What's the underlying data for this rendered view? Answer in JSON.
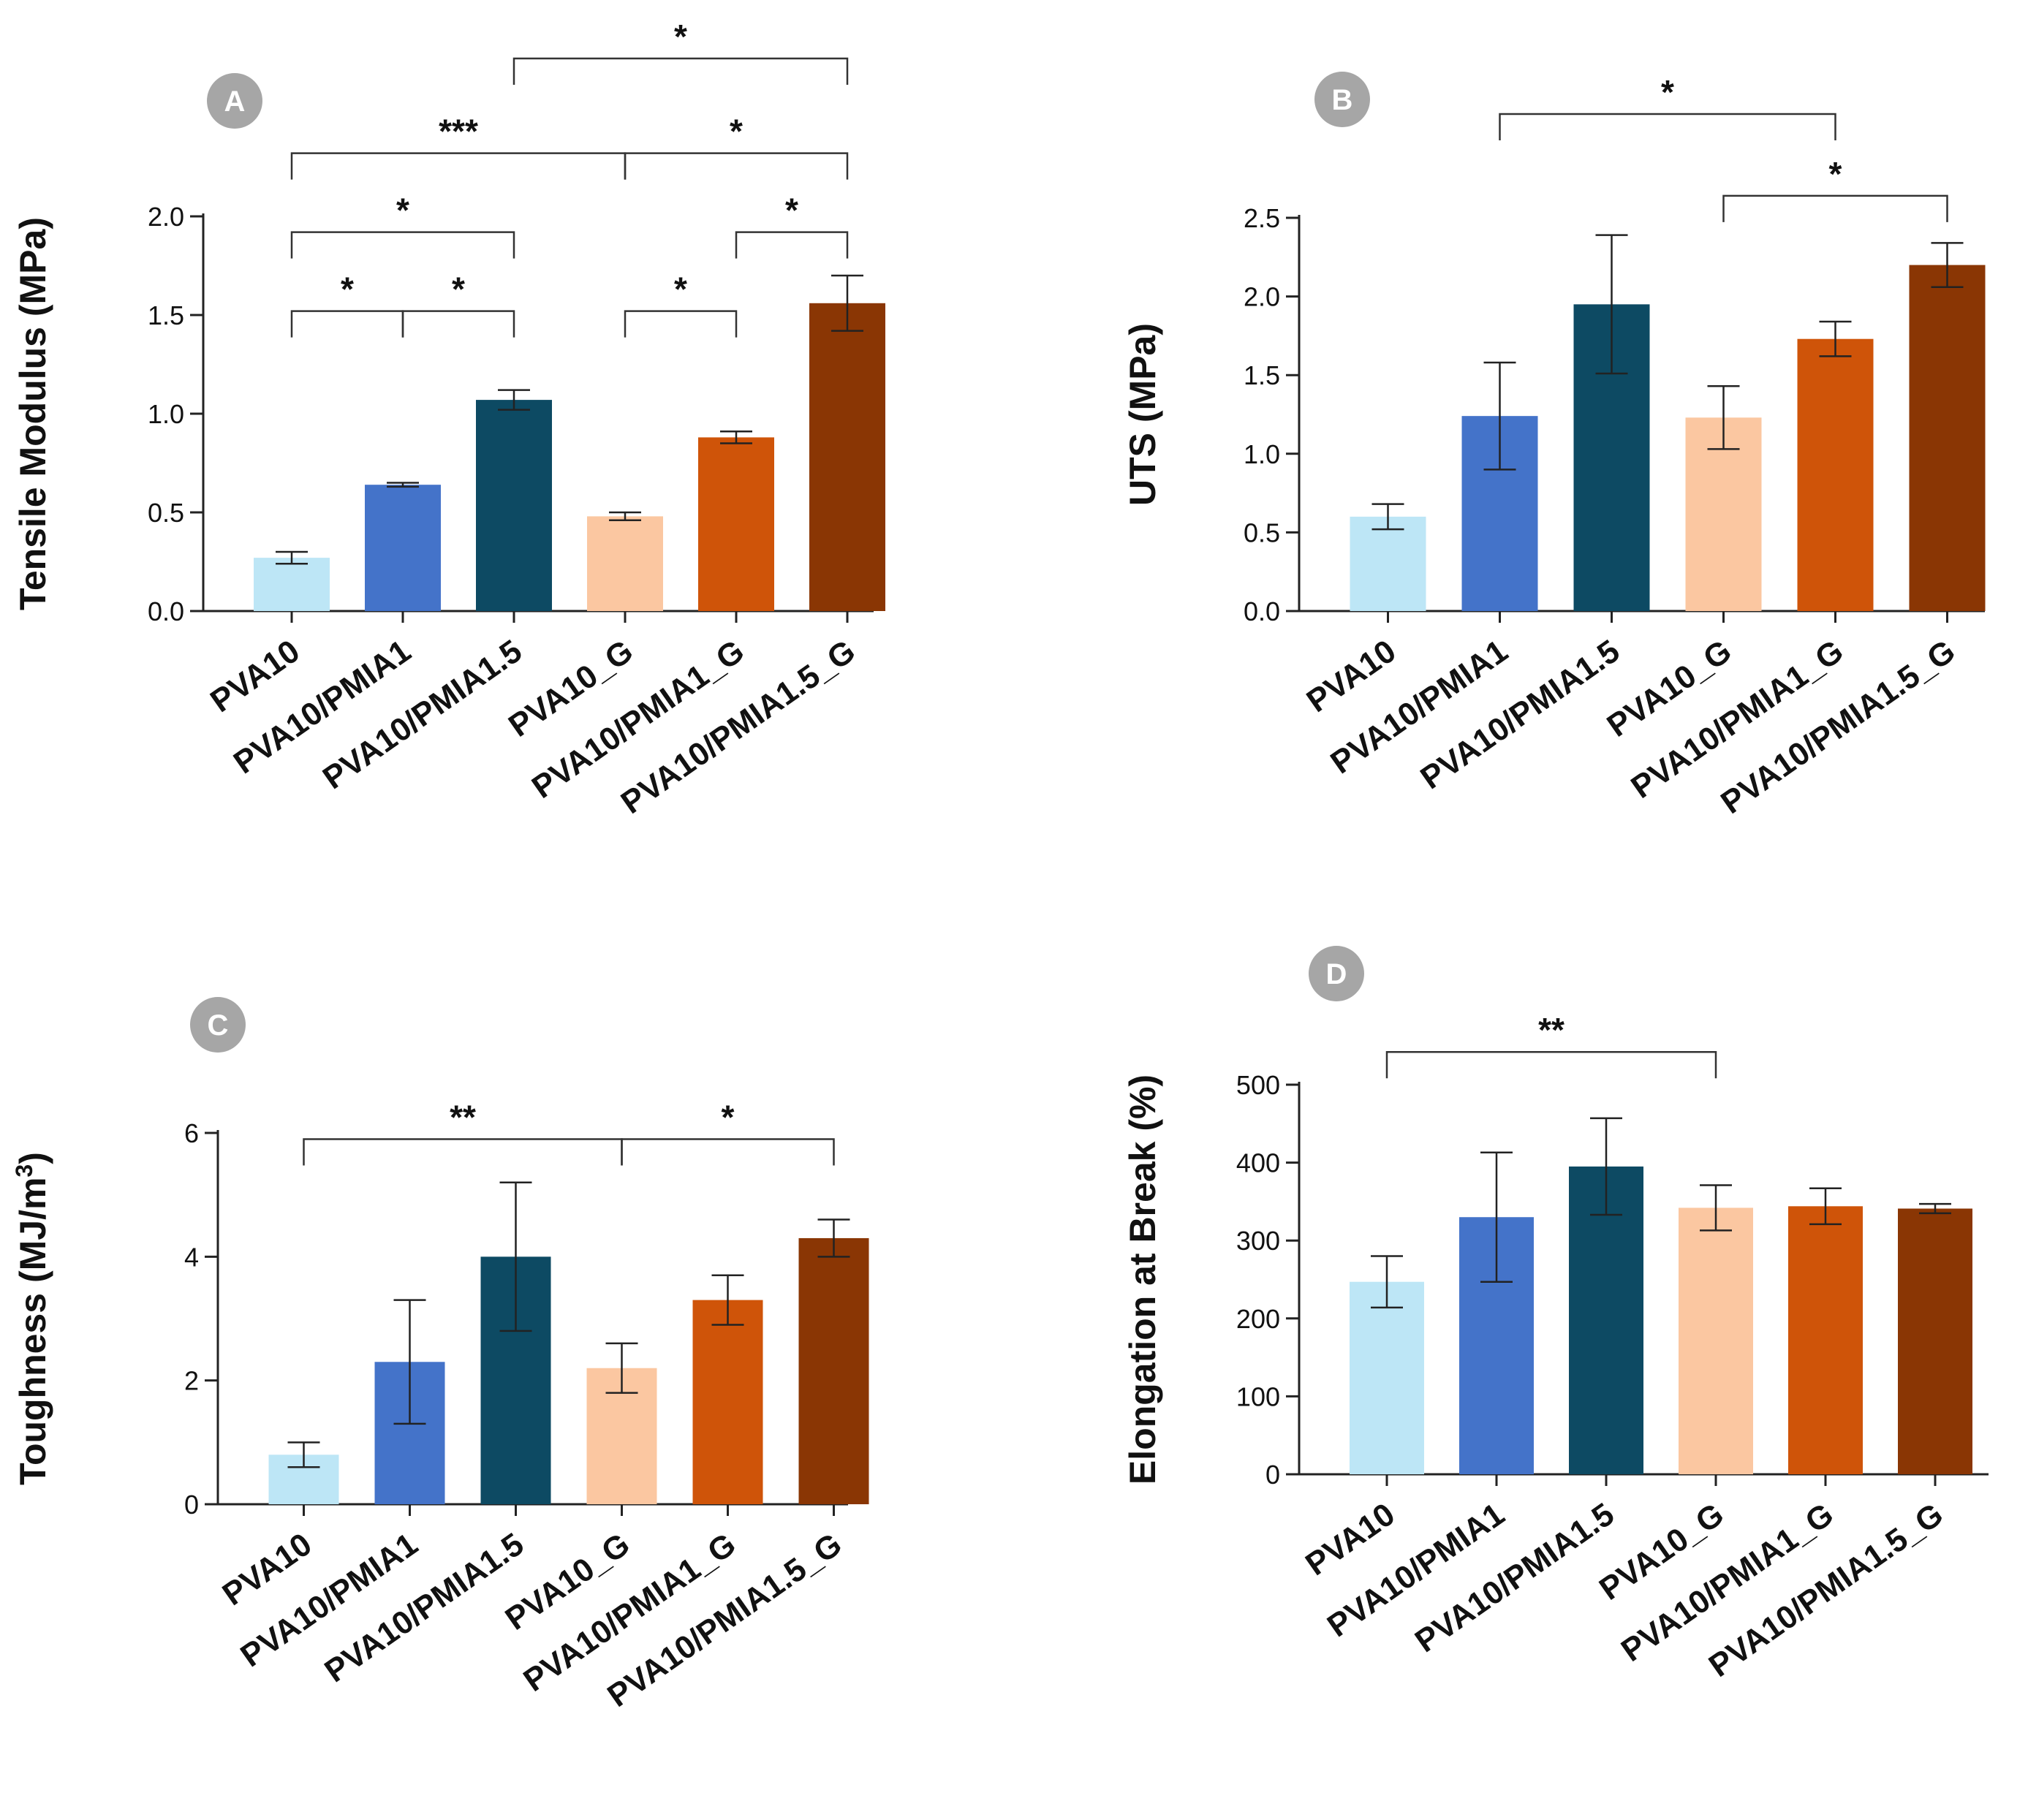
{
  "chart_data": [
    {
      "panel": "A",
      "type": "bar",
      "ylabel": "Tensile Modulus (MPa)",
      "ylim": [
        0,
        2.0
      ],
      "yticks": [
        0.0,
        0.5,
        1.0,
        1.5,
        2.0
      ],
      "ytick_labels": [
        "0.0",
        "0.5",
        "1.0",
        "1.5",
        "2.0"
      ],
      "categories": [
        "PVA10",
        "PVA10/PMIA1",
        "PVA10/PMIA1.5",
        "PVA10_G",
        "PVA10/PMIA1_G",
        "PVA10/PMIA1.5_G"
      ],
      "values": [
        0.27,
        0.64,
        1.07,
        0.48,
        0.88,
        1.56
      ],
      "errors": [
        0.03,
        0.01,
        0.05,
        0.02,
        0.03,
        0.14
      ],
      "colors": [
        "#bde6f6",
        "#4473c9",
        "#0d4a63",
        "#fbc7a1",
        "#cf5409",
        "#8a3604"
      ],
      "brackets": [
        {
          "from": 0,
          "to": 1,
          "level": 1.52,
          "label": "*"
        },
        {
          "from": 1,
          "to": 2,
          "level": 1.52,
          "label": "*"
        },
        {
          "from": 0,
          "to": 2,
          "level": 1.92,
          "label": "*"
        },
        {
          "from": 3,
          "to": 4,
          "level": 1.52,
          "label": "*"
        },
        {
          "from": 4,
          "to": 5,
          "level": 1.92,
          "label": "*"
        },
        {
          "from": 0,
          "to": 3,
          "level": 2.32,
          "label": "***"
        },
        {
          "from": 3,
          "to": 5,
          "level": 2.32,
          "label": "*"
        },
        {
          "from": 2,
          "to": 5,
          "level": 2.8,
          "label": "*"
        }
      ]
    },
    {
      "panel": "B",
      "type": "bar",
      "ylabel": "UTS (MPa)",
      "ylim": [
        0,
        2.5
      ],
      "yticks": [
        0.0,
        0.5,
        1.0,
        1.5,
        2.0,
        2.5
      ],
      "ytick_labels": [
        "0.0",
        "0.5",
        "1.0",
        "1.5",
        "2.0",
        "2.5"
      ],
      "categories": [
        "PVA10",
        "PVA10/PMIA1",
        "PVA10/PMIA1.5",
        "PVA10_G",
        "PVA10/PMIA1_G",
        "PVA10/PMIA1.5_G"
      ],
      "values": [
        0.6,
        1.24,
        1.95,
        1.23,
        1.73,
        2.2
      ],
      "errors": [
        0.08,
        0.34,
        0.44,
        0.2,
        0.11,
        0.14
      ],
      "colors": [
        "#bde6f6",
        "#4473c9",
        "#0d4a63",
        "#fbc7a1",
        "#cf5409",
        "#8a3604"
      ],
      "brackets": [
        {
          "from": 3,
          "to": 5,
          "level": 2.64,
          "label": "*"
        },
        {
          "from": 1,
          "to": 4,
          "level": 3.16,
          "label": "*"
        }
      ]
    },
    {
      "panel": "C",
      "type": "bar",
      "ylabel": "Toughness (MJ/m",
      "ylabel_sup": "3",
      "ylabel_end": ")",
      "ylim": [
        0,
        6
      ],
      "yticks": [
        0,
        2,
        4,
        6
      ],
      "ytick_labels": [
        "0",
        "2",
        "4",
        "6"
      ],
      "categories": [
        "PVA10",
        "PVA10/PMIA1",
        "PVA10/PMIA1.5",
        "PVA10_G",
        "PVA10/PMIA1_G",
        "PVA10/PMIA1.5_G"
      ],
      "values": [
        0.8,
        2.3,
        4.0,
        2.2,
        3.3,
        4.3
      ],
      "errors": [
        0.2,
        1.0,
        1.2,
        0.4,
        0.4,
        0.3
      ],
      "colors": [
        "#bde6f6",
        "#4473c9",
        "#0d4a63",
        "#fbc7a1",
        "#cf5409",
        "#8a3604"
      ],
      "brackets": [
        {
          "from": 0,
          "to": 3,
          "level": 5.9,
          "label": "**"
        },
        {
          "from": 3,
          "to": 5,
          "level": 5.9,
          "label": "*"
        }
      ]
    },
    {
      "panel": "D",
      "type": "bar",
      "ylabel": "Elongation at Break (%)",
      "ylim": [
        0,
        500
      ],
      "yticks": [
        0,
        100,
        200,
        300,
        400,
        500
      ],
      "ytick_labels": [
        "0",
        "100",
        "200",
        "300",
        "400",
        "500"
      ],
      "categories": [
        "PVA10",
        "PVA10/PMIA1",
        "PVA10/PMIA1.5",
        "PVA10_G",
        "PVA10/PMIA1_G",
        "PVA10/PMIA1.5_G"
      ],
      "values": [
        247,
        330,
        395,
        342,
        344,
        341
      ],
      "errors": [
        33,
        83,
        62,
        29,
        23,
        6
      ],
      "colors": [
        "#bde6f6",
        "#4473c9",
        "#0d4a63",
        "#fbc7a1",
        "#cf5409",
        "#8a3604"
      ],
      "brackets": [
        {
          "from": 0,
          "to": 3,
          "level": 542,
          "label": "**"
        }
      ]
    }
  ]
}
